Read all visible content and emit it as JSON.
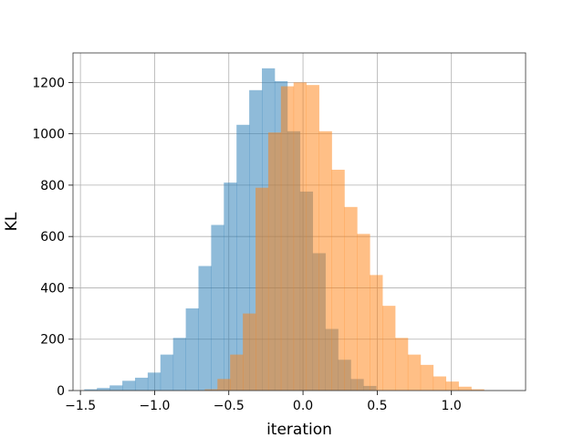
{
  "chart_data": {
    "type": "histogram",
    "xlabel": "iteration",
    "ylabel": "KL",
    "xlim": [
      -1.55,
      1.5
    ],
    "ylim": [
      0,
      1315
    ],
    "xticks": [
      -1.5,
      -1.0,
      -0.5,
      0.0,
      0.5,
      1.0
    ],
    "xtick_labels": [
      "−1.5",
      "−1.0",
      "−0.5",
      "0.0",
      "0.5",
      "1.0"
    ],
    "yticks": [
      0,
      200,
      400,
      600,
      800,
      1000,
      1200
    ],
    "ytick_labels": [
      "0",
      "200",
      "400",
      "600",
      "800",
      "1000",
      "1200"
    ],
    "grid": true,
    "bin_width": 0.0855,
    "series": [
      {
        "color": "#1f77b4",
        "opacity": 0.5,
        "bin_start": -1.474,
        "values": [
          5,
          10,
          20,
          38,
          50,
          70,
          140,
          205,
          320,
          485,
          645,
          810,
          1035,
          1170,
          1255,
          1205,
          1010,
          775,
          535,
          240,
          120,
          45,
          18
        ]
      },
      {
        "color": "#ff7f0e",
        "opacity": 0.5,
        "bin_start": -0.662,
        "values": [
          5,
          45,
          140,
          300,
          790,
          1005,
          1185,
          1200,
          1190,
          1010,
          860,
          715,
          610,
          450,
          330,
          205,
          140,
          100,
          55,
          35,
          15,
          5
        ]
      }
    ]
  }
}
